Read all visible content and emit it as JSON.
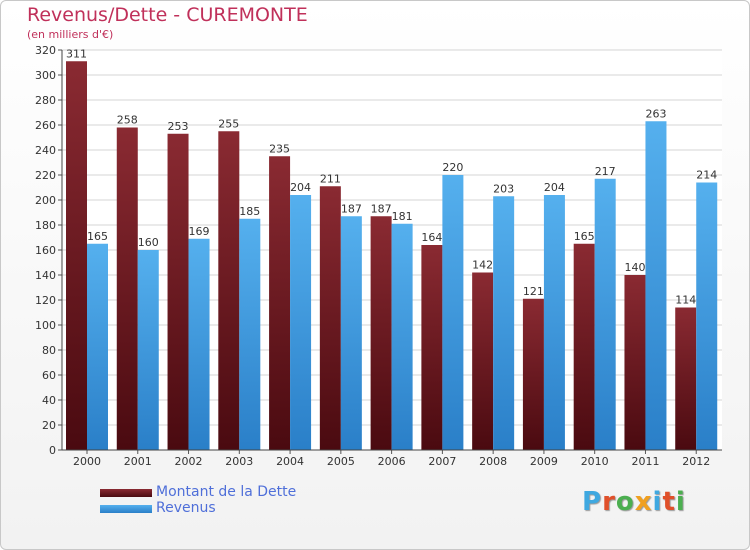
{
  "title": "Revenus/Dette - CUREMONTE",
  "subtitle": "(en milliers d'€)",
  "logo_text": "Proxiti",
  "logo_colors": [
    "#3fa8e0",
    "#e0502a",
    "#4caf50",
    "#f0a020",
    "#3fa8e0",
    "#e0502a",
    "#4caf50"
  ],
  "chart_data": {
    "type": "bar",
    "categories": [
      "2000",
      "2001",
      "2002",
      "2003",
      "2004",
      "2005",
      "2006",
      "2007",
      "2008",
      "2009",
      "2010",
      "2011",
      "2012"
    ],
    "series": [
      {
        "name": "Montant de la Dette",
        "color": "#7a2028",
        "values": [
          311,
          258,
          253,
          255,
          235,
          211,
          187,
          164,
          142,
          121,
          165,
          140,
          114
        ]
      },
      {
        "name": "Revenus",
        "color": "#3d9be0",
        "values": [
          165,
          160,
          169,
          185,
          204,
          187,
          181,
          220,
          203,
          204,
          217,
          263,
          214
        ]
      }
    ],
    "ylim": [
      0,
      320
    ],
    "yticks": [
      0,
      20,
      40,
      60,
      80,
      100,
      120,
      140,
      160,
      180,
      200,
      220,
      240,
      260,
      280,
      300,
      320
    ],
    "grid": true,
    "legend_position": "bottom-left"
  }
}
